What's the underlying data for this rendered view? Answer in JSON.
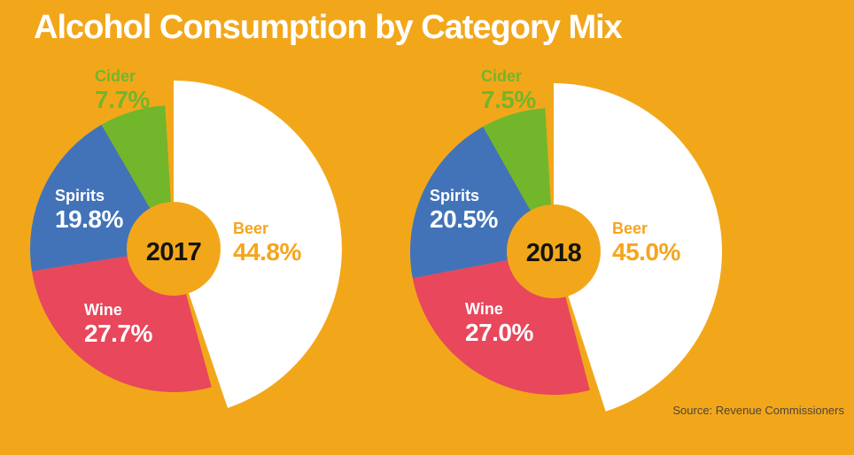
{
  "title": "Alcohol Consumption by Category Mix",
  "source": "Source: Revenue Commissioners",
  "colors": {
    "background": "#F2A71B",
    "beer": "#FFFFFF",
    "wine": "#E8475C",
    "spirits": "#4273B8",
    "cider": "#72B62B",
    "beer_label_text": "#F5A51D",
    "year_text": "#151310",
    "white_label_text": "#FFFFFF",
    "source_text": "#4E4537"
  },
  "chart_data": [
    {
      "type": "pie",
      "style": "donut, beer slice exploded with larger radius, gaps at beer boundaries",
      "center_label": "2017",
      "unit": "%",
      "slices": [
        {
          "label": "Beer",
          "value": 44.8,
          "display": "44.8%",
          "color_key": "beer"
        },
        {
          "label": "Wine",
          "value": 27.7,
          "display": "27.7%",
          "color_key": "wine"
        },
        {
          "label": "Spirits",
          "value": 19.8,
          "display": "19.8%",
          "color_key": "spirits"
        },
        {
          "label": "Cider",
          "value": 7.7,
          "display": "7.7%",
          "color_key": "cider"
        }
      ]
    },
    {
      "type": "pie",
      "style": "donut, beer slice exploded with larger radius, gaps at beer boundaries",
      "center_label": "2018",
      "unit": "%",
      "slices": [
        {
          "label": "Beer",
          "value": 45.0,
          "display": "45.0%",
          "color_key": "beer"
        },
        {
          "label": "Wine",
          "value": 27.0,
          "display": "27.0%",
          "color_key": "wine"
        },
        {
          "label": "Spirits",
          "value": 20.5,
          "display": "20.5%",
          "color_key": "spirits"
        },
        {
          "label": "Cider",
          "value": 7.5,
          "display": "7.5%",
          "color_key": "cider"
        }
      ]
    }
  ]
}
